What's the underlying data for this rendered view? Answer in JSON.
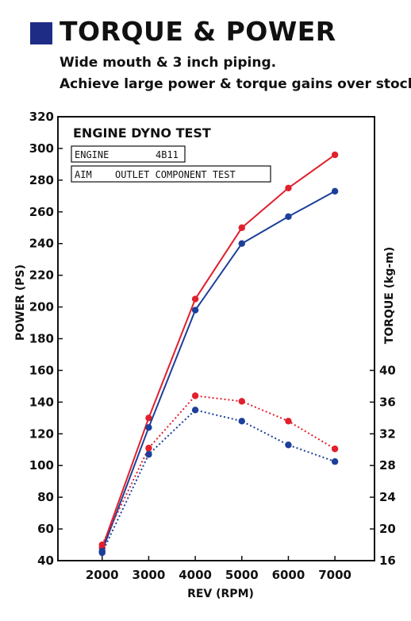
{
  "header": {
    "title": "TORQUE & POWER",
    "subtitle_line1": "Wide mouth & 3 inch piping.",
    "subtitle_line2": "Achieve large power & torque gains over stock."
  },
  "colors": {
    "red": "#e0202c",
    "blue": "#1c3f99",
    "accent_square": "#1f2c86"
  },
  "chart_data": {
    "type": "line",
    "title": "ENGINE DYNO TEST",
    "info_boxes": [
      {
        "label": "ENGINE",
        "value": "4B11"
      },
      {
        "label": "AIM",
        "value": "OUTLET COMPONENT TEST"
      }
    ],
    "xlabel": "REV (RPM)",
    "ylabel_left": "POWER (PS)",
    "ylabel_right": "TORQUE (kg-m)",
    "x": [
      2000,
      3000,
      4000,
      5000,
      6000,
      7000
    ],
    "x_ticks": [
      "2000",
      "3000",
      "4000",
      "5000",
      "6000",
      "7000"
    ],
    "xlim": [
      1050,
      7850
    ],
    "ylim_left": [
      40,
      320
    ],
    "ylim_right": [
      16,
      72
    ],
    "y_ticks_left": [
      "40",
      "60",
      "80",
      "100",
      "120",
      "140",
      "160",
      "180",
      "200",
      "220",
      "240",
      "260",
      "280",
      "300",
      "320"
    ],
    "y_ticks_right": [
      "16",
      "20",
      "24",
      "28",
      "32",
      "36",
      "40"
    ],
    "grid": false,
    "series": [
      {
        "axis": "left",
        "style": "solid",
        "color": "#e0202c",
        "values": [
          48,
          130,
          205,
          250,
          275,
          296
        ]
      },
      {
        "axis": "left",
        "style": "solid",
        "color": "#1c3f99",
        "values": [
          46,
          124,
          198,
          240,
          257,
          273
        ]
      },
      {
        "axis": "right",
        "style": "dotted",
        "color": "#e0202c",
        "values": [
          18.0,
          30.2,
          36.8,
          36.1,
          33.6,
          30.1
        ]
      },
      {
        "axis": "right",
        "style": "dotted",
        "color": "#1c3f99",
        "values": [
          17.0,
          29.4,
          35.0,
          33.6,
          30.6,
          28.5
        ]
      }
    ]
  }
}
